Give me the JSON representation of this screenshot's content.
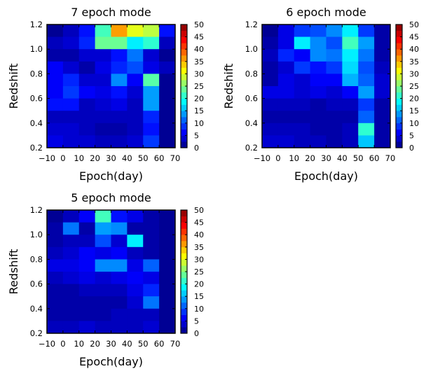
{
  "chart_data": [
    {
      "type": "heatmap",
      "title": "7 epoch mode",
      "xlabel": "Epoch(day)",
      "ylabel": "Redshift",
      "xlim": [
        -10,
        70
      ],
      "ylim": [
        0.2,
        1.2
      ],
      "x_edges": [
        -10,
        0,
        10,
        20,
        30,
        40,
        50,
        60,
        70
      ],
      "y_edges": [
        0.2,
        0.3,
        0.4,
        0.5,
        0.6,
        0.7,
        0.8,
        0.9,
        1.0,
        1.1,
        1.2
      ],
      "xticks": [
        "−10",
        "0",
        "10",
        "20",
        "30",
        "40",
        "50",
        "60",
        "70"
      ],
      "yticks": [
        "0.2",
        "0.4",
        "0.6",
        "0.8",
        "1.0",
        "1.2"
      ],
      "colorbar": {
        "min": 0,
        "max": 50,
        "ticks": [
          "0",
          "5",
          "10",
          "15",
          "20",
          "25",
          "30",
          "35",
          "40",
          "45",
          "50"
        ],
        "colormap": "jet"
      },
      "values": [
        [
          1,
          3,
          7,
          22,
          36,
          30,
          28,
          7
        ],
        [
          3,
          4,
          8,
          24,
          24,
          18,
          21,
          3
        ],
        [
          2,
          2,
          4,
          4,
          7,
          12,
          4,
          1
        ],
        [
          6,
          4,
          2,
          5,
          8,
          10,
          5,
          3
        ],
        [
          6,
          8,
          4,
          4,
          13,
          6,
          23,
          1
        ],
        [
          6,
          9,
          6,
          5,
          7,
          4,
          14,
          1
        ],
        [
          7,
          7,
          3,
          4,
          5,
          3,
          14,
          1
        ],
        [
          3,
          3,
          3,
          3,
          3,
          3,
          8,
          1
        ],
        [
          4,
          4,
          3,
          2,
          2,
          3,
          7,
          1
        ],
        [
          5,
          4,
          4,
          3,
          3,
          4,
          9,
          1
        ]
      ]
    },
    {
      "type": "heatmap",
      "title": "6 epoch mode",
      "xlabel": "Epoch(day)",
      "ylabel": "Redshift",
      "xlim": [
        -10,
        70
      ],
      "ylim": [
        0.2,
        1.2
      ],
      "x_edges": [
        -10,
        0,
        10,
        20,
        30,
        40,
        50,
        60,
        70
      ],
      "y_edges": [
        0.2,
        0.3,
        0.4,
        0.5,
        0.6,
        0.7,
        0.8,
        0.9,
        1.0,
        1.1,
        1.2
      ],
      "xticks": [
        "−10",
        "0",
        "10",
        "20",
        "30",
        "40",
        "50",
        "60",
        "70"
      ],
      "yticks": [
        "0.2",
        "0.4",
        "0.6",
        "0.8",
        "1.0",
        "1.2"
      ],
      "colorbar": {
        "min": 0,
        "max": 50,
        "ticks": [
          "0",
          "5",
          "10",
          "15",
          "20",
          "25",
          "30",
          "35",
          "40",
          "45",
          "50"
        ],
        "colormap": "jet"
      },
      "values": [
        [
          1,
          5,
          9,
          10,
          13,
          18,
          9,
          2
        ],
        [
          2,
          5,
          18,
          13,
          10,
          22,
          14,
          2
        ],
        [
          3,
          8,
          6,
          13,
          12,
          18,
          12,
          2
        ],
        [
          2,
          4,
          9,
          7,
          9,
          17,
          10,
          3
        ],
        [
          2,
          5,
          4,
          6,
          6,
          15,
          11,
          4
        ],
        [
          5,
          5,
          4,
          5,
          4,
          6,
          14,
          4
        ],
        [
          3,
          3,
          3,
          2,
          3,
          3,
          9,
          2
        ],
        [
          2,
          2,
          2,
          2,
          2,
          2,
          11,
          2
        ],
        [
          3,
          3,
          3,
          2,
          2,
          3,
          21,
          2
        ],
        [
          4,
          4,
          3,
          3,
          2,
          3,
          16,
          2
        ]
      ]
    },
    {
      "type": "heatmap",
      "title": "5 epoch mode",
      "xlabel": "Epoch(day)",
      "ylabel": "Redshift",
      "xlim": [
        -10,
        70
      ],
      "ylim": [
        0.2,
        1.2
      ],
      "x_edges": [
        -10,
        0,
        10,
        20,
        30,
        40,
        50,
        60,
        70
      ],
      "y_edges": [
        0.2,
        0.3,
        0.4,
        0.5,
        0.6,
        0.7,
        0.8,
        0.9,
        1.0,
        1.1,
        1.2
      ],
      "xticks": [
        "−10",
        "0",
        "10",
        "20",
        "30",
        "40",
        "50",
        "60",
        "70"
      ],
      "yticks": [
        "0.2",
        "0.4",
        "0.6",
        "0.8",
        "1.0",
        "1.2"
      ],
      "colorbar": {
        "min": 0,
        "max": 50,
        "ticks": [
          "0",
          "5",
          "10",
          "15",
          "20",
          "25",
          "30",
          "35",
          "40",
          "45",
          "50"
        ],
        "colormap": "jet"
      },
      "values": [
        [
          1,
          3,
          6,
          22,
          7,
          5,
          2,
          1
        ],
        [
          2,
          12,
          2,
          14,
          13,
          2,
          2,
          1
        ],
        [
          2,
          3,
          3,
          10,
          4,
          18,
          2,
          1
        ],
        [
          3,
          4,
          6,
          5,
          6,
          3,
          2,
          1
        ],
        [
          5,
          5,
          6,
          13,
          13,
          5,
          11,
          1
        ],
        [
          3,
          4,
          5,
          4,
          5,
          6,
          5,
          1
        ],
        [
          2,
          2,
          3,
          3,
          3,
          5,
          8,
          1
        ],
        [
          2,
          2,
          2,
          2,
          2,
          4,
          12,
          1
        ],
        [
          2,
          2,
          2,
          2,
          3,
          3,
          3,
          1
        ],
        [
          3,
          3,
          4,
          3,
          3,
          3,
          4,
          1
        ]
      ]
    }
  ]
}
